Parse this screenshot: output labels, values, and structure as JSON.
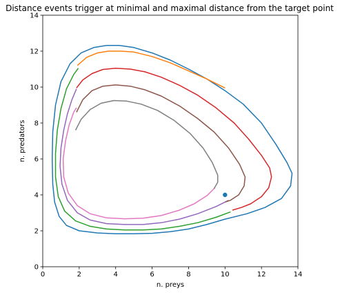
{
  "chart_data": {
    "type": "line",
    "title": "Distance events trigger at minimal and maximal distance from the target point",
    "xlabel": "n. preys",
    "ylabel": "n. predators",
    "xlim": [
      0,
      14
    ],
    "ylim": [
      0,
      14
    ],
    "xticks": [
      "0",
      "2",
      "4",
      "6",
      "8",
      "10",
      "12",
      "14"
    ],
    "yticks": [
      "0",
      "2",
      "4",
      "6",
      "8",
      "10",
      "12",
      "14"
    ],
    "grid": false,
    "legend": "none",
    "target_point": {
      "x": 10,
      "y": 4,
      "color": "#1f77b4"
    },
    "series": [
      {
        "color": "#1f77b4",
        "points": [
          [
            10.0,
            2.65
          ],
          [
            9.0,
            2.35
          ],
          [
            8.0,
            2.1
          ],
          [
            7.0,
            1.95
          ],
          [
            6.0,
            1.86
          ],
          [
            5.0,
            1.84
          ],
          [
            4.0,
            1.84
          ],
          [
            3.0,
            1.88
          ],
          [
            2.0,
            2.0
          ],
          [
            1.3,
            2.3
          ],
          [
            0.9,
            2.8
          ],
          [
            0.65,
            3.6
          ],
          [
            0.55,
            4.6
          ],
          [
            0.52,
            6.0
          ],
          [
            0.55,
            7.5
          ],
          [
            0.7,
            9.0
          ],
          [
            1.0,
            10.3
          ],
          [
            1.5,
            11.3
          ],
          [
            2.1,
            11.9
          ],
          [
            2.8,
            12.2
          ],
          [
            3.5,
            12.32
          ],
          [
            4.2,
            12.32
          ],
          [
            5.0,
            12.2
          ],
          [
            6.0,
            11.9
          ],
          [
            7.0,
            11.5
          ],
          [
            8.0,
            11.0
          ],
          [
            9.0,
            10.45
          ],
          [
            10.0,
            9.8
          ],
          [
            11.0,
            9.05
          ],
          [
            12.0,
            8.0
          ],
          [
            12.8,
            6.8
          ],
          [
            13.4,
            5.8
          ],
          [
            13.68,
            5.2
          ],
          [
            13.6,
            4.5
          ],
          [
            13.1,
            3.8
          ],
          [
            12.2,
            3.3
          ],
          [
            11.2,
            2.95
          ],
          [
            10.0,
            2.65
          ]
        ]
      },
      {
        "color": "#ff7f0e",
        "points": [
          [
            1.9,
            11.2
          ],
          [
            2.4,
            11.65
          ],
          [
            3.0,
            11.9
          ],
          [
            3.6,
            12.0
          ],
          [
            4.3,
            12.0
          ],
          [
            5.0,
            11.95
          ],
          [
            6.0,
            11.7
          ],
          [
            7.0,
            11.35
          ],
          [
            8.0,
            10.9
          ],
          [
            9.0,
            10.45
          ],
          [
            10.0,
            9.95
          ]
        ]
      },
      {
        "color": "#2ca02c",
        "points": [
          [
            10.3,
            3.05
          ],
          [
            9.5,
            2.75
          ],
          [
            8.5,
            2.45
          ],
          [
            7.5,
            2.25
          ],
          [
            6.5,
            2.1
          ],
          [
            5.5,
            2.05
          ],
          [
            4.5,
            2.05
          ],
          [
            3.5,
            2.1
          ],
          [
            2.6,
            2.25
          ],
          [
            1.8,
            2.55
          ],
          [
            1.2,
            3.1
          ],
          [
            0.85,
            3.9
          ],
          [
            0.7,
            5.0
          ],
          [
            0.7,
            6.3
          ],
          [
            0.8,
            7.6
          ],
          [
            1.0,
            8.8
          ],
          [
            1.3,
            9.9
          ],
          [
            1.7,
            10.7
          ],
          [
            1.95,
            11.05
          ]
        ]
      },
      {
        "color": "#d62728",
        "points": [
          [
            1.85,
            9.95
          ],
          [
            2.2,
            10.4
          ],
          [
            2.7,
            10.75
          ],
          [
            3.3,
            10.98
          ],
          [
            4.0,
            11.05
          ],
          [
            4.8,
            11.0
          ],
          [
            5.6,
            10.85
          ],
          [
            6.5,
            10.55
          ],
          [
            7.5,
            10.1
          ],
          [
            8.5,
            9.55
          ],
          [
            9.5,
            8.85
          ],
          [
            10.5,
            8.0
          ],
          [
            11.3,
            7.1
          ],
          [
            12.0,
            6.2
          ],
          [
            12.45,
            5.5
          ],
          [
            12.55,
            5.0
          ],
          [
            12.4,
            4.4
          ],
          [
            12.0,
            3.9
          ],
          [
            11.4,
            3.5
          ],
          [
            10.9,
            3.3
          ],
          [
            10.4,
            3.15
          ]
        ]
      },
      {
        "color": "#9467bd",
        "points": [
          [
            10.2,
            3.7
          ],
          [
            9.5,
            3.35
          ],
          [
            8.5,
            2.95
          ],
          [
            7.5,
            2.65
          ],
          [
            6.5,
            2.45
          ],
          [
            5.5,
            2.35
          ],
          [
            4.5,
            2.35
          ],
          [
            3.5,
            2.4
          ],
          [
            2.6,
            2.6
          ],
          [
            1.9,
            3.0
          ],
          [
            1.35,
            3.7
          ],
          [
            1.05,
            4.6
          ],
          [
            0.95,
            5.6
          ],
          [
            1.0,
            6.6
          ],
          [
            1.15,
            7.6
          ],
          [
            1.35,
            8.5
          ],
          [
            1.6,
            9.3
          ],
          [
            1.85,
            9.9
          ]
        ]
      },
      {
        "color": "#8c564b",
        "points": [
          [
            1.85,
            8.6
          ],
          [
            2.2,
            9.3
          ],
          [
            2.7,
            9.8
          ],
          [
            3.3,
            10.05
          ],
          [
            4.0,
            10.12
          ],
          [
            4.8,
            10.05
          ],
          [
            5.6,
            9.85
          ],
          [
            6.5,
            9.5
          ],
          [
            7.5,
            8.95
          ],
          [
            8.5,
            8.25
          ],
          [
            9.4,
            7.5
          ],
          [
            10.2,
            6.6
          ],
          [
            10.8,
            5.7
          ],
          [
            11.1,
            5.0
          ],
          [
            11.05,
            4.5
          ],
          [
            10.75,
            4.0
          ],
          [
            10.3,
            3.7
          ],
          [
            10.0,
            3.6
          ]
        ]
      },
      {
        "color": "#e377c2",
        "points": [
          [
            9.45,
            4.4
          ],
          [
            9.0,
            3.95
          ],
          [
            8.3,
            3.5
          ],
          [
            7.5,
            3.15
          ],
          [
            6.5,
            2.85
          ],
          [
            5.5,
            2.7
          ],
          [
            4.5,
            2.67
          ],
          [
            3.5,
            2.72
          ],
          [
            2.6,
            2.95
          ],
          [
            1.9,
            3.4
          ],
          [
            1.4,
            4.1
          ],
          [
            1.15,
            5.0
          ],
          [
            1.12,
            6.0
          ],
          [
            1.25,
            7.0
          ],
          [
            1.45,
            7.9
          ],
          [
            1.7,
            8.6
          ],
          [
            1.85,
            8.85
          ]
        ]
      },
      {
        "color": "#7f7f7f",
        "points": [
          [
            1.8,
            7.6
          ],
          [
            2.1,
            8.2
          ],
          [
            2.6,
            8.75
          ],
          [
            3.2,
            9.1
          ],
          [
            3.9,
            9.25
          ],
          [
            4.6,
            9.22
          ],
          [
            5.4,
            9.05
          ],
          [
            6.3,
            8.7
          ],
          [
            7.2,
            8.15
          ],
          [
            8.1,
            7.4
          ],
          [
            8.8,
            6.6
          ],
          [
            9.3,
            5.8
          ],
          [
            9.6,
            5.1
          ],
          [
            9.6,
            4.7
          ],
          [
            9.4,
            4.35
          ]
        ]
      }
    ]
  }
}
